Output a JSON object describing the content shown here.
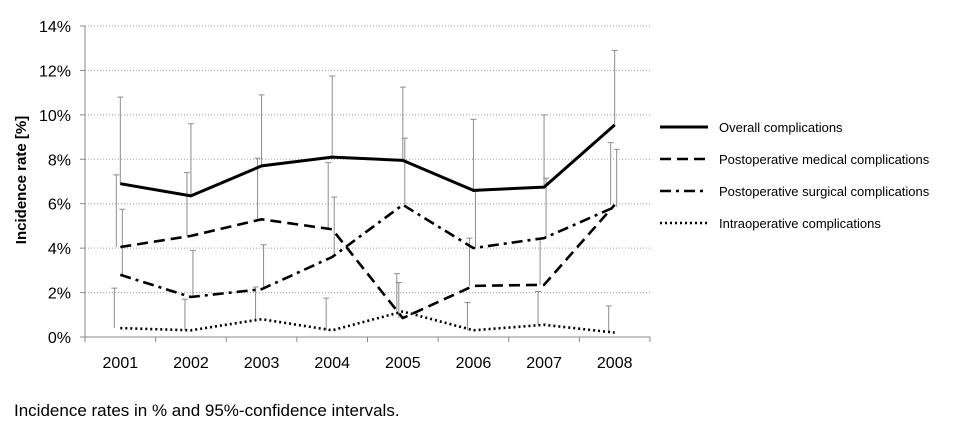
{
  "chart_data": {
    "type": "line",
    "xlabel": "",
    "ylabel": "Incidence rate [%]",
    "x": [
      "2001",
      "2002",
      "2003",
      "2004",
      "2005",
      "2006",
      "2007",
      "2008"
    ],
    "ylim": [
      0,
      14
    ],
    "yticks": [
      "0%",
      "2%",
      "4%",
      "6%",
      "8%",
      "10%",
      "12%",
      "14%"
    ],
    "grid": "horizontal dotted",
    "legend_position": "right",
    "series": [
      {
        "name": "Overall complications",
        "style": "solid",
        "values": [
          6.9,
          6.35,
          7.7,
          8.1,
          7.95,
          6.6,
          6.75,
          9.55
        ],
        "ci_upper": [
          10.8,
          9.6,
          10.9,
          11.75,
          11.25,
          9.8,
          10.0,
          12.9
        ]
      },
      {
        "name": "Postoperative medical complications",
        "style": "dashed",
        "values": [
          4.05,
          4.55,
          5.3,
          4.85,
          0.85,
          2.3,
          2.35,
          5.95
        ],
        "ci_upper": [
          7.3,
          7.4,
          8.05,
          7.85,
          2.45,
          4.45,
          4.45,
          8.75
        ]
      },
      {
        "name": "Postoperative surgical complications",
        "style": "dashdot",
        "values": [
          2.8,
          1.8,
          2.15,
          3.6,
          5.95,
          4.0,
          4.45,
          5.85
        ],
        "ci_upper": [
          5.75,
          3.9,
          4.15,
          6.3,
          8.95,
          6.55,
          7.15,
          8.45
        ]
      },
      {
        "name": "Intraoperative complications",
        "style": "dotted",
        "values": [
          0.4,
          0.3,
          0.8,
          0.3,
          1.15,
          0.3,
          0.55,
          0.2
        ],
        "ci_upper": [
          2.2,
          1.7,
          2.25,
          1.75,
          2.85,
          1.55,
          2.05,
          1.4
        ]
      }
    ]
  },
  "caption": "Incidence rates in % and 95%-confidence intervals."
}
